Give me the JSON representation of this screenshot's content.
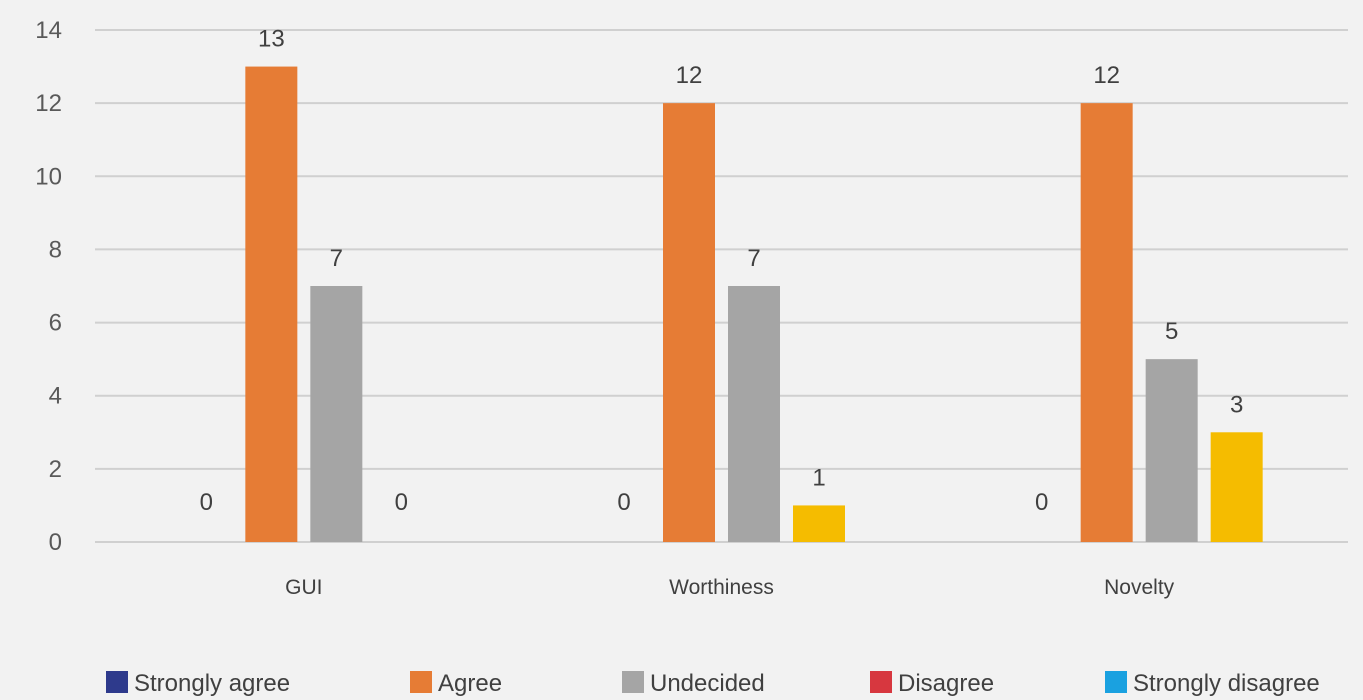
{
  "chart_data": {
    "type": "bar",
    "categories": [
      "GUI",
      "Worthiness",
      "Novelty"
    ],
    "ylim": [
      0,
      14
    ],
    "yticks": [
      0,
      2,
      4,
      6,
      8,
      10,
      12,
      14
    ],
    "grid": true,
    "legend_position": "bottom",
    "series": [
      {
        "name": "Strongly agree",
        "color": "#2e3a8c",
        "values": [
          0,
          0,
          0
        ],
        "labels": [
          true,
          true,
          true
        ]
      },
      {
        "name": "Agree",
        "color": "#e67c35",
        "values": [
          13,
          12,
          12
        ],
        "labels": [
          true,
          true,
          true
        ]
      },
      {
        "name": "Undecided",
        "color": "#a5a5a5",
        "values": [
          7,
          7,
          5
        ],
        "labels": [
          true,
          true,
          true
        ]
      },
      {
        "name": "Disagree",
        "color": "#d7373f",
        "values": [
          0,
          1,
          3
        ],
        "labels": [
          true,
          true,
          true
        ]
      },
      {
        "name": "Strongly disagree",
        "color": "#1aa1e0",
        "values": [
          0,
          0,
          0
        ],
        "labels": [
          false,
          false,
          false
        ]
      }
    ]
  }
}
